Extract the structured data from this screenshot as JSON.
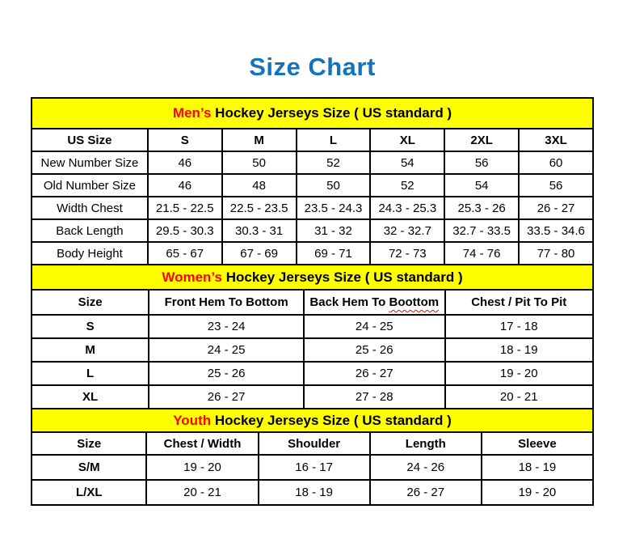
{
  "page": {
    "title": "Size Chart"
  },
  "colors": {
    "title_blue": "#1473BE",
    "band_yellow": "#FFFF00",
    "accent_red": "#FF0000",
    "text_black": "#000000"
  },
  "sections": [
    {
      "id": "mens",
      "band": {
        "highlight": "Men’s",
        "rest": " Hockey Jerseys Size ( US standard )"
      },
      "columns": [
        {
          "label": "US Size"
        },
        {
          "label": "S"
        },
        {
          "label": "M"
        },
        {
          "label": "L"
        },
        {
          "label": "XL"
        },
        {
          "label": "2XL"
        },
        {
          "label": "3XL"
        }
      ],
      "rows": [
        {
          "label": "New Number Size",
          "values": [
            "46",
            "50",
            "52",
            "54",
            "56",
            "60"
          ]
        },
        {
          "label": "Old Number Size",
          "values": [
            "46",
            "48",
            "50",
            "52",
            "54",
            "56"
          ]
        },
        {
          "label": "Width Chest",
          "values": [
            "21.5 - 22.5",
            "22.5 - 23.5",
            "23.5 - 24.3",
            "24.3 - 25.3",
            "25.3 - 26",
            "26 - 27"
          ]
        },
        {
          "label": "Back Length",
          "values": [
            "29.5 - 30.3",
            "30.3 - 31",
            "31 - 32",
            "32 - 32.7",
            "32.7 - 33.5",
            "33.5 - 34.6"
          ]
        },
        {
          "label": "Body Height",
          "values": [
            "65 - 67",
            "67 - 69",
            "69 - 71",
            "72 - 73",
            "74 - 76",
            "77 - 80"
          ]
        }
      ]
    },
    {
      "id": "womens",
      "band": {
        "highlight": "Women’s",
        "rest": " Hockey Jerseys Size ( US standard )"
      },
      "columns": [
        {
          "label": "Size"
        },
        {
          "label": "Front Hem To Bottom"
        },
        {
          "label": "Back Hem To ",
          "wavy_word": "Boottom"
        },
        {
          "label": "Chest / Pit To Pit"
        }
      ],
      "rows": [
        {
          "label": "S",
          "values": [
            "23 - 24",
            "24 - 25",
            "17 - 18"
          ]
        },
        {
          "label": "M",
          "values": [
            "24 - 25",
            "25 - 26",
            "18 - 19"
          ]
        },
        {
          "label": "L",
          "values": [
            "25 - 26",
            "26 - 27",
            "19 - 20"
          ]
        },
        {
          "label": "XL",
          "values": [
            "26 - 27",
            "27 - 28",
            "20 - 21"
          ]
        }
      ]
    },
    {
      "id": "youth",
      "band": {
        "highlight": "Youth",
        "rest": " Hockey Jerseys Size ( US standard )"
      },
      "columns": [
        {
          "label": "Size"
        },
        {
          "label": "Chest / Width"
        },
        {
          "label": "Shoulder"
        },
        {
          "label": "Length"
        },
        {
          "label": "Sleeve"
        }
      ],
      "rows": [
        {
          "label": "S/M",
          "values": [
            "19 - 20",
            "16 - 17",
            "24 - 26",
            "18 - 19"
          ]
        },
        {
          "label": "L/XL",
          "values": [
            "20 - 21",
            "18 - 19",
            "26 - 27",
            "19 - 20"
          ]
        }
      ]
    }
  ]
}
